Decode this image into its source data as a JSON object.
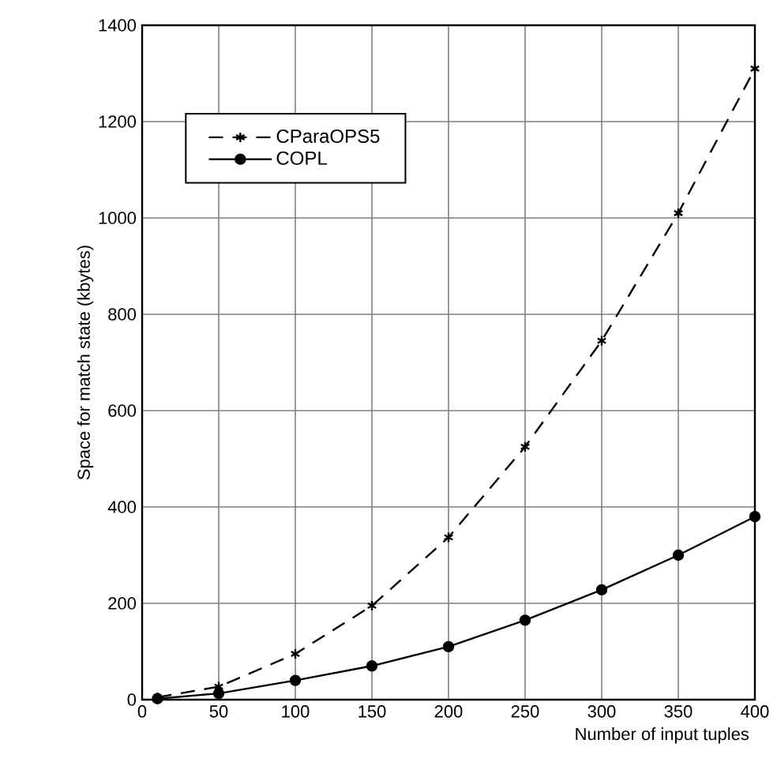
{
  "chart_data": {
    "type": "line",
    "xlabel": "Number of input tuples",
    "ylabel": "Space for match state (kbytes)",
    "x": [
      10,
      50,
      100,
      150,
      200,
      250,
      300,
      350,
      400
    ],
    "series": [
      {
        "name": "CParaOPS5",
        "color": "#000000",
        "marker": "cross",
        "line_style": "dashed",
        "values": [
          5,
          27,
          95,
          195,
          337,
          525,
          745,
          1010,
          1310
        ]
      },
      {
        "name": "COPL",
        "color": "#000000",
        "marker": "circle",
        "line_style": "solid",
        "values": [
          2,
          13,
          40,
          70,
          110,
          165,
          228,
          300,
          380
        ]
      }
    ],
    "xlim": [
      0,
      400
    ],
    "xticks": [
      0,
      50,
      100,
      150,
      200,
      250,
      300,
      350,
      400
    ],
    "ylim": [
      0,
      1400
    ],
    "yticks": [
      0,
      200,
      400,
      600,
      800,
      1000,
      1200,
      1400
    ],
    "grid": true,
    "legend": "top left"
  }
}
